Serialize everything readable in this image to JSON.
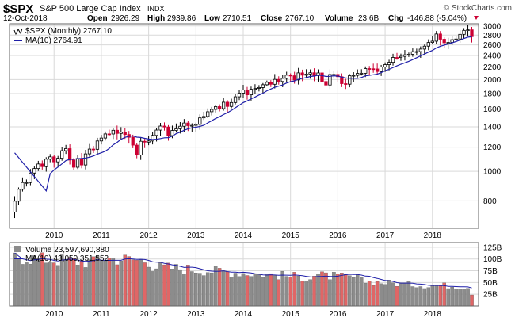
{
  "header": {
    "symbol": "$SPX",
    "name": "S&P 500 Large Cap Index",
    "exchange": "INDX",
    "date": "12-Oct-2018",
    "open_label": "Open",
    "open": "2926.29",
    "high_label": "High",
    "high": "2939.86",
    "low_label": "Low",
    "low": "2710.51",
    "close_label": "Close",
    "close": "2767.10",
    "volume_label": "Volume",
    "volume": "23.6B",
    "chg_label": "Chg",
    "chg": "-146.88 (-5.04%)",
    "copyright": "© StockCharts.com"
  },
  "legend": {
    "price_series": "$SPX (Monthly) 2767.10",
    "ma_series": "MA(10) 2764.91",
    "volume_series": "Volume 23,597,690,880",
    "volume_ma_series": "MA(10) 43,059,351,552"
  },
  "colors": {
    "up": "#000000",
    "down": "#cc0033",
    "ma": "#1f1fa8",
    "vol_up": "#8c8c8c",
    "vol_down": "#e06666",
    "grid": "#d9d9d9",
    "frame": "#666666"
  },
  "chart_data": [
    {
      "type": "candlestick",
      "title": "$SPX (Monthly)",
      "scale": "log",
      "ylim": [
        650,
        3050
      ],
      "y_ticks": [
        800,
        1000,
        1200,
        1400,
        1600,
        1800,
        2000,
        2200,
        2400,
        2600,
        2800,
        3000
      ],
      "x_ticks": [
        "2010",
        "2011",
        "2012",
        "2013",
        "2014",
        "2015",
        "2016",
        "2017",
        "2018"
      ],
      "start": "2009-03",
      "end": "2018-10",
      "grid": true,
      "monthly_closes": [
        798,
        873,
        919,
        919,
        987,
        1021,
        1057,
        1036,
        1096,
        1116,
        1074,
        1104,
        1169,
        1187,
        1089,
        1031,
        1102,
        1049,
        1141,
        1183,
        1181,
        1258,
        1286,
        1327,
        1326,
        1364,
        1332,
        1345,
        1321,
        1293,
        1219,
        1131,
        1255,
        1247,
        1258,
        1312,
        1366,
        1408,
        1398,
        1310,
        1362,
        1379,
        1406,
        1441,
        1412,
        1416,
        1426,
        1498,
        1514,
        1569,
        1597,
        1631,
        1606,
        1686,
        1633,
        1682,
        1757,
        1806,
        1848,
        1783,
        1859,
        1872,
        1884,
        1924,
        1960,
        1931,
        2003,
        1972,
        2018,
        2068,
        2059,
        1995,
        2105,
        2068,
        2086,
        2107,
        2063,
        2104,
        1972,
        1920,
        2079,
        2080,
        2044,
        1940,
        1932,
        2060,
        2065,
        2097,
        2099,
        2174,
        2171,
        2168,
        2126,
        2199,
        2239,
        2279,
        2364,
        2363,
        2384,
        2412,
        2423,
        2470,
        2472,
        2519,
        2575,
        2648,
        2674,
        2824,
        2714,
        2641,
        2648,
        2705,
        2718,
        2816,
        2901,
        2914,
        2767
      ],
      "ma10_start": 1150,
      "ma10_end": 2764.91
    },
    {
      "type": "bar",
      "title": "Volume",
      "unit": "shares",
      "ylim": [
        0,
        135
      ],
      "y_ticks": [
        "25B",
        "50B",
        "75B",
        "100B",
        "125B"
      ],
      "ma10_last": "43,059,351,552",
      "last_volume": "23,597,690,880"
    }
  ]
}
